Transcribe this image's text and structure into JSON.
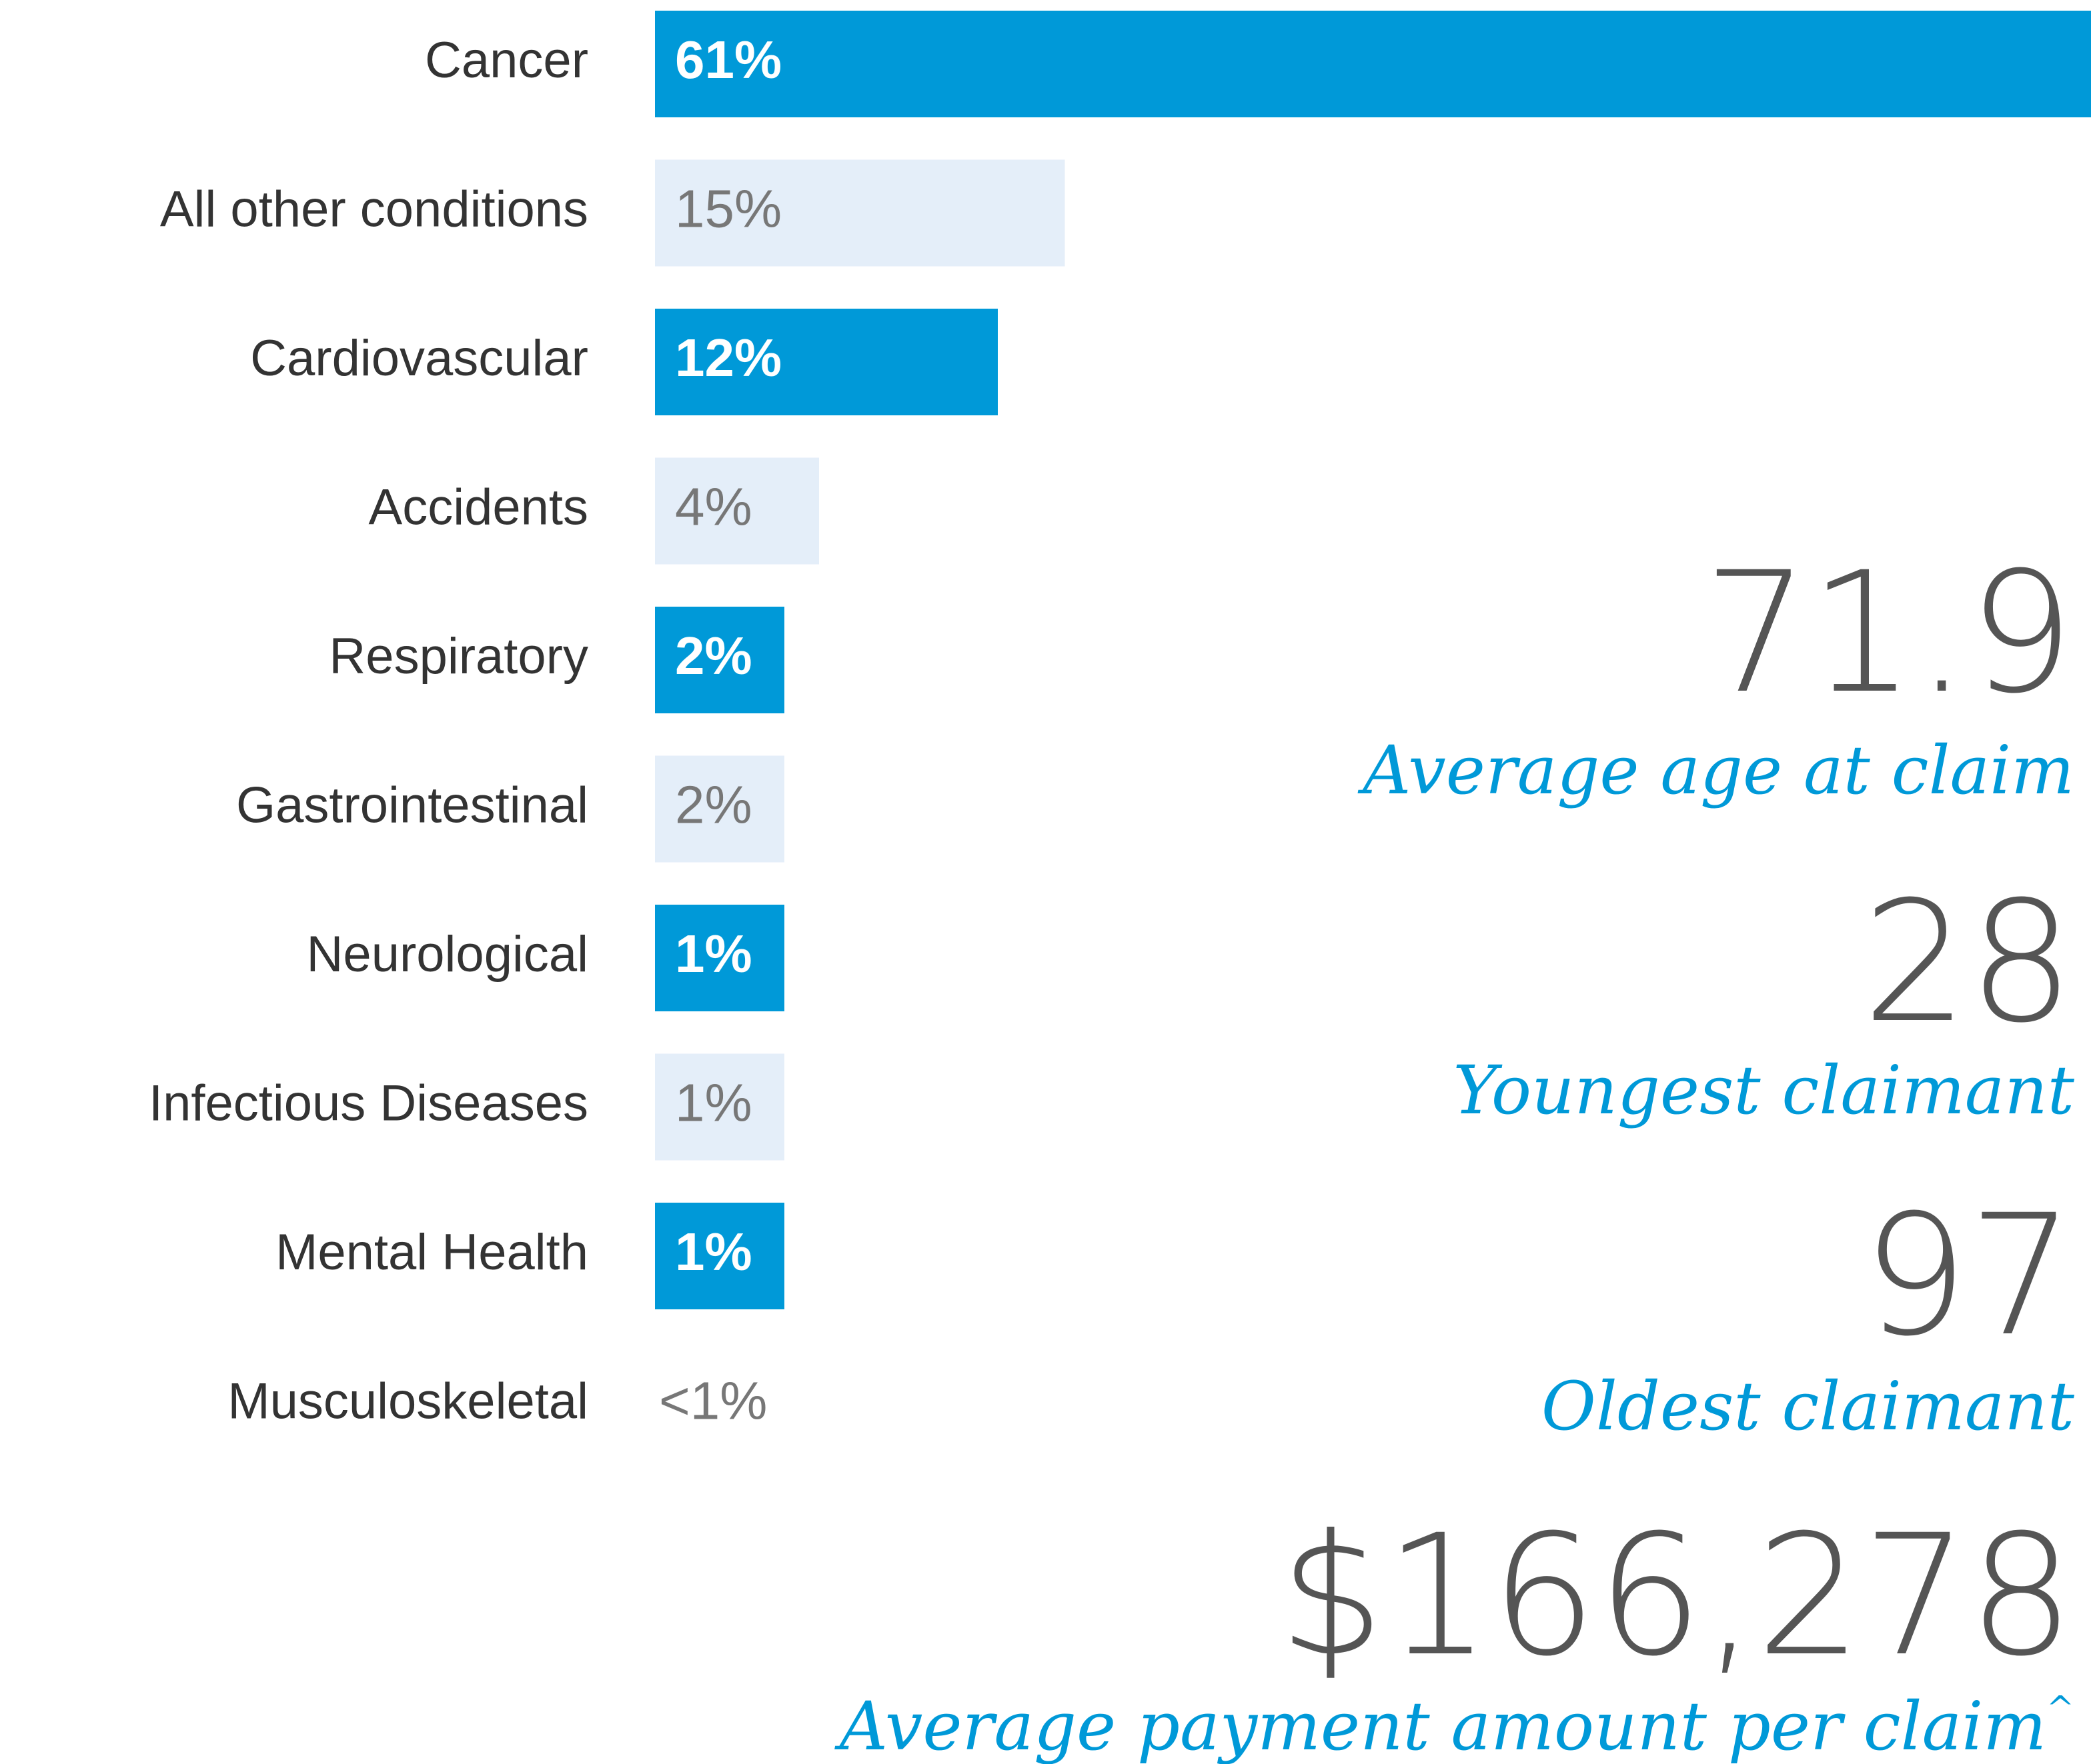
{
  "chart_data": {
    "type": "hbar",
    "categories": [
      "Cancer",
      "All other conditions",
      "Cardiovascular",
      "Accidents",
      "Respiratory",
      "Gastrointestinal",
      "Neurological",
      "Infectious Diseases",
      "Mental Health",
      "Musculoskeletal"
    ],
    "values": [
      61,
      15,
      12,
      4,
      2,
      2,
      1,
      1,
      1,
      0.5
    ],
    "value_labels": [
      "61%",
      "15%",
      "12%",
      "4%",
      "2%",
      "2%",
      "1%",
      "1%",
      "1%",
      "<1%"
    ],
    "colors": [
      "#0099d8",
      "#e4eef9",
      "#0099d8",
      "#e4eef9",
      "#0099d8",
      "#e4eef9",
      "#0099d8",
      "#e4eef9",
      "#0099d8",
      null
    ]
  },
  "stats": [
    {
      "value": "71.9",
      "caption": "Average age at claim"
    },
    {
      "value": "28",
      "caption": "Youngest claimant"
    },
    {
      "value": "97",
      "caption": "Oldest claimant"
    },
    {
      "value": "$166,278",
      "caption": "Average payment amount per claim",
      "note": "^"
    }
  ]
}
